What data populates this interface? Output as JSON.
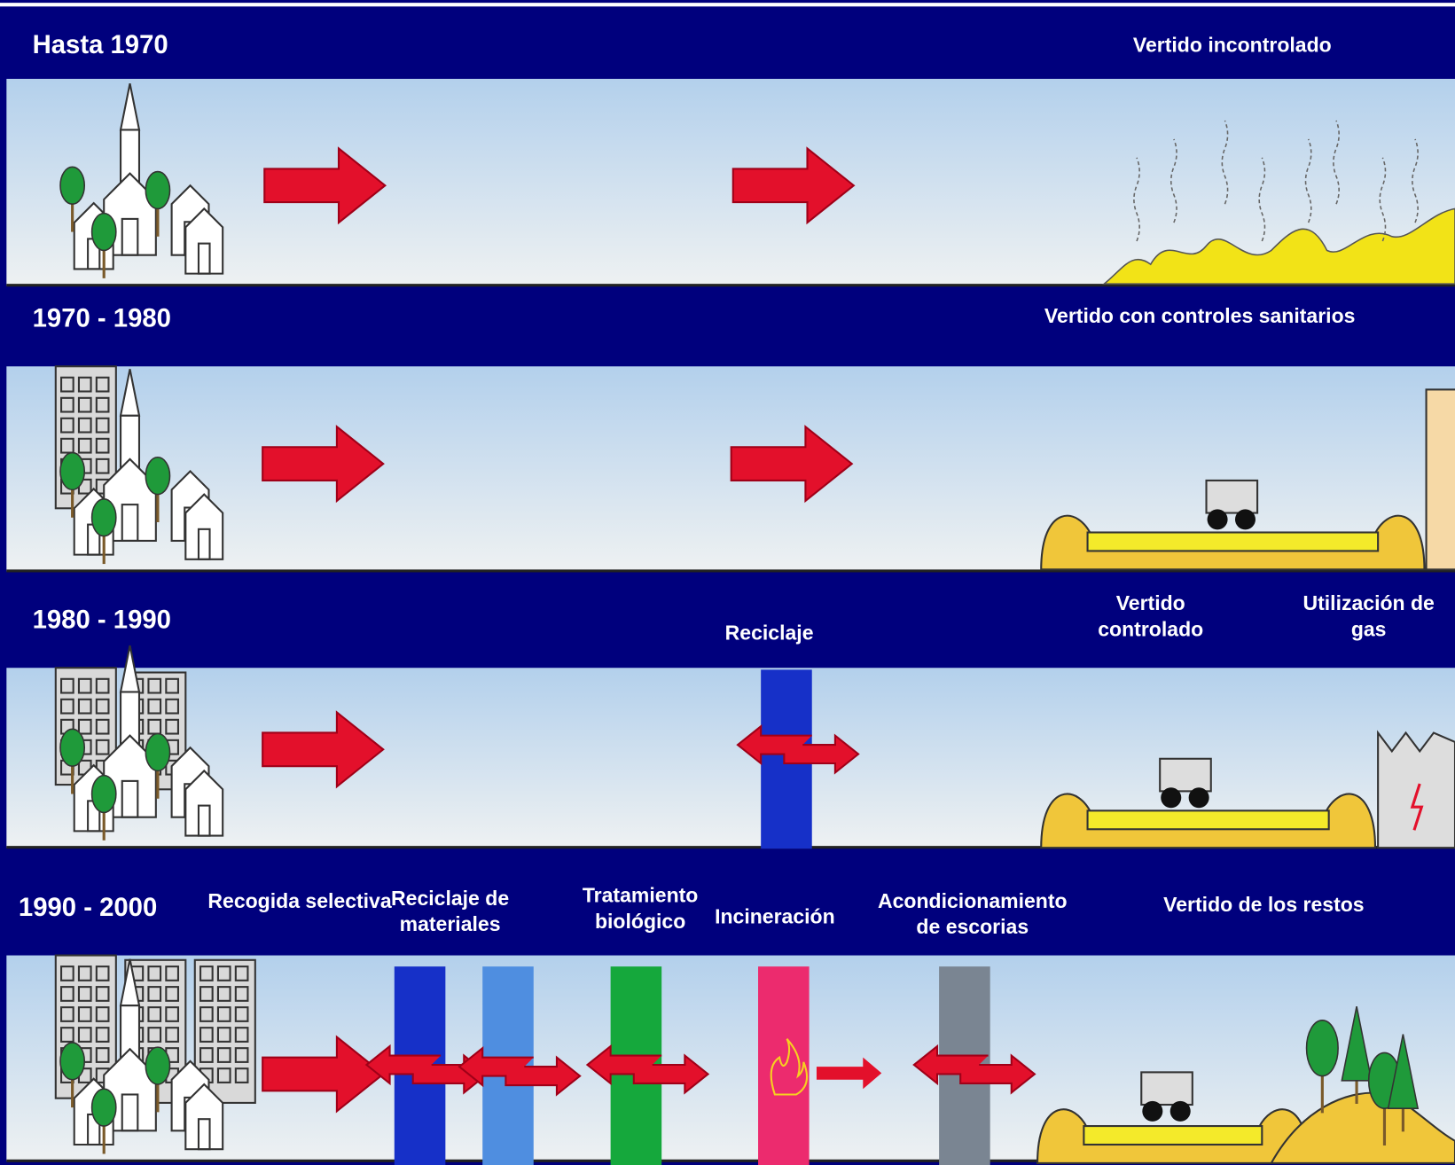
{
  "rows": [
    {
      "period": "Hasta 1970",
      "labels": [
        {
          "lines": [
            "Vertido incontrolado"
          ]
        }
      ]
    },
    {
      "period": "1970 - 1980",
      "labels": [
        {
          "lines": [
            "Vertido con controles sanitarios"
          ]
        }
      ]
    },
    {
      "period": "1980 - 1990",
      "labels": [
        {
          "lines": [
            "Reciclaje"
          ]
        },
        {
          "lines": [
            "Vertido",
            "controlado"
          ]
        },
        {
          "lines": [
            "Utilización de",
            "gas"
          ]
        }
      ]
    },
    {
      "period": "1990 - 2000",
      "labels": [
        {
          "lines": [
            "Recogida selectiva"
          ]
        },
        {
          "lines": [
            "Reciclaje de",
            "materiales"
          ]
        },
        {
          "lines": [
            "Tratamiento",
            "biológico"
          ]
        },
        {
          "lines": [
            "Incineración"
          ]
        },
        {
          "lines": [
            "Acondicionamiento",
            "de escorias"
          ]
        },
        {
          "lines": [
            "Vertido de los restos"
          ]
        }
      ]
    }
  ]
}
